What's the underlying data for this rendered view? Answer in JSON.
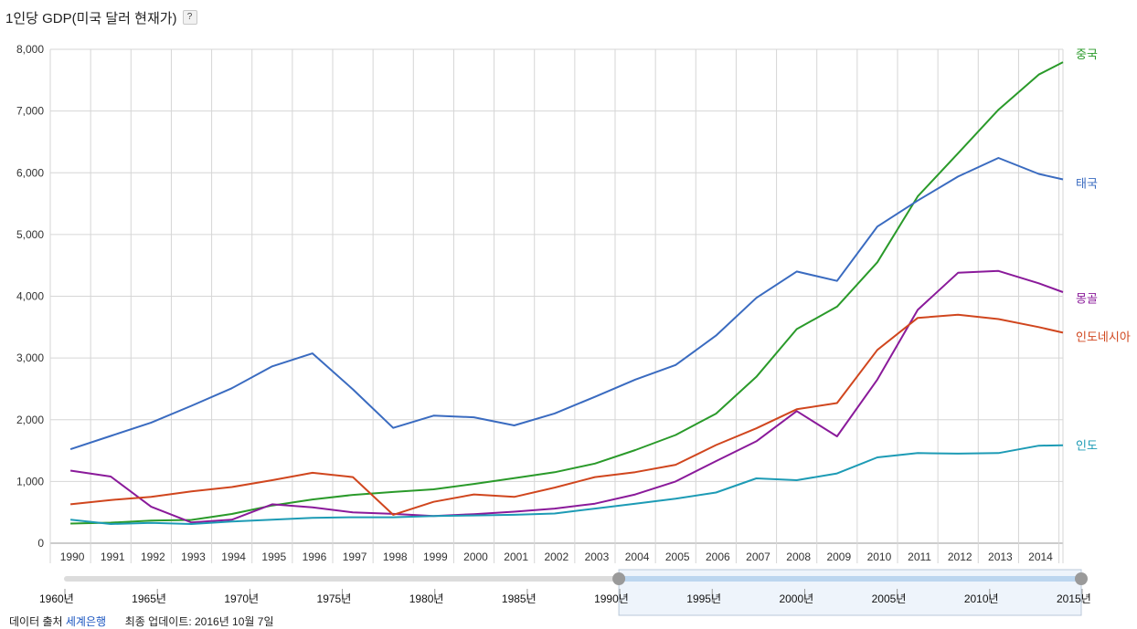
{
  "chart_data": {
    "type": "line",
    "title": "1인당 GDP(미국 달러 현재가)",
    "help_label": "?",
    "ylim": [
      0,
      8000
    ],
    "y_ticks": [
      0,
      1000,
      2000,
      3000,
      4000,
      5000,
      6000,
      7000,
      8000
    ],
    "y_tick_labels": [
      "0",
      "1,000",
      "2,000",
      "3,000",
      "4,000",
      "5,000",
      "6,000",
      "7,000",
      "8,000"
    ],
    "x": [
      1990,
      1991,
      1992,
      1993,
      1994,
      1995,
      1996,
      1997,
      1998,
      1999,
      2000,
      2001,
      2002,
      2003,
      2004,
      2005,
      2006,
      2007,
      2008,
      2009,
      2010,
      2011,
      2012,
      2013,
      2014,
      2015
    ],
    "x_tick_labels": [
      "1990",
      "1991",
      "1992",
      "1993",
      "1994",
      "1995",
      "1996",
      "1997",
      "1998",
      "1999",
      "2000",
      "2001",
      "2002",
      "2003",
      "2004",
      "2005",
      "2006",
      "2007",
      "2008",
      "2009",
      "2010",
      "2011",
      "2012",
      "2013",
      "2014"
    ],
    "grid": true,
    "legend_position": "right",
    "series": [
      {
        "name": "중국",
        "color": "#2a9a2a",
        "values": [
          318,
          333,
          366,
          377,
          473,
          610,
          709,
          782,
          829,
          873,
          959,
          1053,
          1149,
          1289,
          1509,
          1753,
          2099,
          2694,
          3468,
          3832,
          4550,
          5618,
          6316,
          7021,
          7590,
          7925
        ]
      },
      {
        "name": "태국",
        "color": "#3a6bc0",
        "values": [
          1522,
          1737,
          1953,
          2225,
          2509,
          2865,
          3074,
          2491,
          1868,
          2066,
          2039,
          1908,
          2102,
          2370,
          2650,
          2887,
          3363,
          3973,
          4400,
          4249,
          5128,
          5550,
          5938,
          6240,
          5981,
          5833
        ]
      },
      {
        "name": "몽골",
        "color": "#8a1a9a",
        "values": [
          1175,
          1080,
          590,
          335,
          380,
          630,
          580,
          500,
          475,
          440,
          470,
          510,
          560,
          640,
          790,
          1000,
          1330,
          1650,
          2140,
          1730,
          2650,
          3780,
          4380,
          4410,
          4210,
          3970
        ]
      },
      {
        "name": "인도네시아",
        "color": "#d0461e",
        "values": [
          630,
          700,
          750,
          840,
          910,
          1020,
          1140,
          1070,
          460,
          670,
          790,
          750,
          900,
          1070,
          1150,
          1270,
          1590,
          1860,
          2170,
          2270,
          3130,
          3650,
          3700,
          3630,
          3500,
          3350
        ]
      },
      {
        "name": "인도",
        "color": "#1d9bb5",
        "values": [
          380,
          310,
          330,
          310,
          350,
          380,
          410,
          420,
          420,
          440,
          450,
          460,
          480,
          560,
          640,
          720,
          820,
          1050,
          1020,
          1130,
          1390,
          1460,
          1450,
          1460,
          1580,
          1590
        ]
      }
    ]
  },
  "range_selector": {
    "axis_labels": [
      "1960년",
      "1965년",
      "1970년",
      "1975년",
      "1980년",
      "1985년",
      "1990년",
      "1995년",
      "2000년",
      "2005년",
      "2010년",
      "2015년"
    ],
    "start_year": 1960,
    "end_year": 2015,
    "selected_start": 1990,
    "selected_end": 2015
  },
  "footer": {
    "source_label": "데이터 출처",
    "source_link": "세계은행",
    "updated_label": "최종 업데이트: 2016년 10월 7일"
  }
}
